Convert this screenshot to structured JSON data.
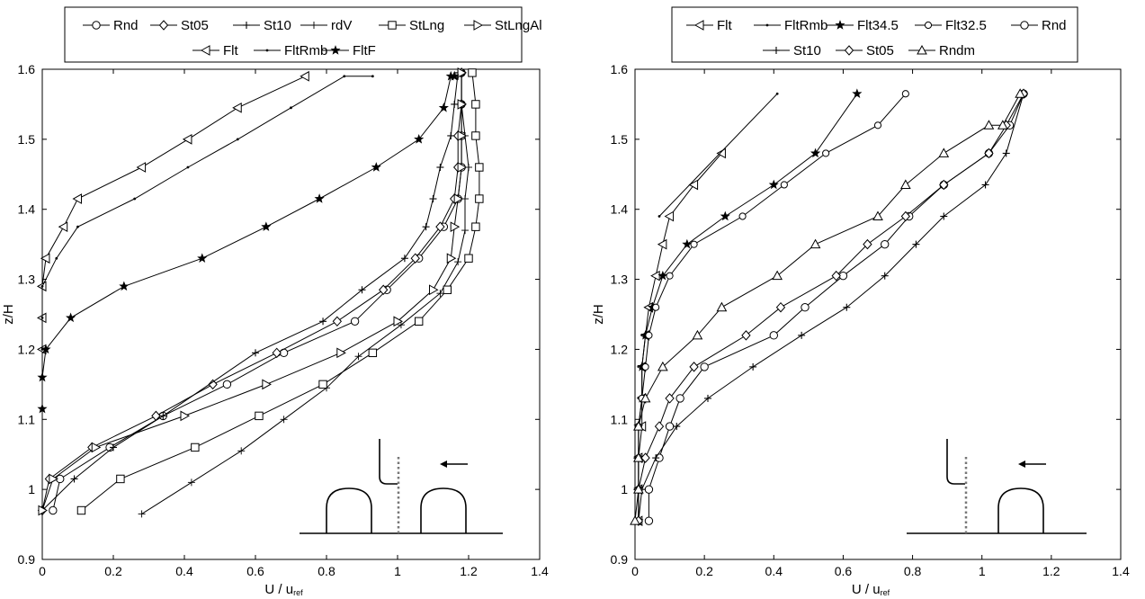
{
  "colors": {
    "line": "#000000",
    "probe": "#777777",
    "background": "#ffffff"
  },
  "chart_data": [
    {
      "type": "line",
      "title": "",
      "xlabel": "U / u",
      "xlabel_sub": "ref",
      "ylabel": "z/H",
      "xlim": [
        0,
        1.4
      ],
      "ylim": [
        0.9,
        1.6
      ],
      "xticks": [
        "0",
        "0.2",
        "0.4",
        "0.6",
        "0.8",
        "1",
        "1.2",
        "1.4"
      ],
      "yticks": [
        "0.9",
        "1",
        "1.1",
        "1.2",
        "1.3",
        "1.4",
        "1.5",
        "1.6"
      ],
      "inset": "two-hills",
      "legend_rows": [
        [
          "Rnd",
          "St05",
          "St10",
          "rdV",
          "StLng",
          "StLngAl"
        ],
        [
          "Flt",
          "FltRmb",
          "FltF"
        ]
      ],
      "series": [
        {
          "name": "Rnd",
          "marker": "circle",
          "x": [
            0.03,
            0.05,
            0.19,
            0.34,
            0.52,
            0.68,
            0.88,
            0.97,
            1.06,
            1.13,
            1.17,
            1.18,
            1.18,
            1.18,
            1.18
          ],
          "y": [
            0.97,
            1.015,
            1.06,
            1.105,
            1.15,
            1.195,
            1.24,
            1.285,
            1.33,
            1.375,
            1.415,
            1.46,
            1.505,
            1.55,
            1.595
          ]
        },
        {
          "name": "St05",
          "marker": "diamond",
          "x": [
            0.0,
            0.02,
            0.14,
            0.32,
            0.48,
            0.66,
            0.83,
            0.96,
            1.05,
            1.12,
            1.16,
            1.17,
            1.17,
            1.18,
            1.18
          ],
          "y": [
            0.97,
            1.015,
            1.06,
            1.105,
            1.15,
            1.195,
            1.24,
            1.285,
            1.33,
            1.375,
            1.415,
            1.46,
            1.505,
            1.55,
            1.595
          ]
        },
        {
          "name": "St10",
          "marker": "plus",
          "x": [
            0.0,
            0.09,
            0.2,
            0.34,
            0.6,
            0.79,
            0.9,
            1.02,
            1.08,
            1.1,
            1.12,
            1.15,
            1.16,
            1.17,
            1.17
          ],
          "y": [
            0.97,
            1.015,
            1.06,
            1.105,
            1.195,
            1.24,
            1.285,
            1.33,
            1.375,
            1.415,
            1.46,
            1.505,
            1.55,
            1.595,
            1.59
          ]
        },
        {
          "name": "rdV",
          "marker": "cross",
          "x": [
            0.28,
            0.42,
            0.56,
            0.68,
            0.8,
            0.89,
            1.01,
            1.12,
            1.17,
            1.19,
            1.19,
            1.2,
            1.19,
            1.18
          ],
          "y": [
            0.965,
            1.01,
            1.055,
            1.1,
            1.145,
            1.19,
            1.235,
            1.28,
            1.325,
            1.37,
            1.415,
            1.46,
            1.505,
            1.55
          ]
        },
        {
          "name": "StLng",
          "marker": "square",
          "x": [
            0.11,
            0.22,
            0.43,
            0.61,
            0.79,
            0.93,
            1.06,
            1.14,
            1.2,
            1.22,
            1.23,
            1.23,
            1.22,
            1.22,
            1.21
          ],
          "y": [
            0.97,
            1.015,
            1.06,
            1.105,
            1.15,
            1.195,
            1.24,
            1.285,
            1.33,
            1.375,
            1.415,
            1.46,
            1.505,
            1.55,
            1.595
          ]
        },
        {
          "name": "StLngAl",
          "marker": "triangle-right",
          "x": [
            0.0,
            0.03,
            0.15,
            0.4,
            0.63,
            0.84,
            1.0,
            1.1,
            1.15,
            1.16,
            1.17,
            1.18,
            1.18,
            1.18,
            1.18
          ],
          "y": [
            0.97,
            1.015,
            1.06,
            1.105,
            1.15,
            1.195,
            1.24,
            1.285,
            1.33,
            1.375,
            1.415,
            1.46,
            1.505,
            1.55,
            1.595
          ]
        },
        {
          "name": "Flt",
          "marker": "triangle-left",
          "x": [
            0.0,
            0.0,
            0.0,
            0.01,
            0.06,
            0.1,
            0.28,
            0.41,
            0.55,
            0.74
          ],
          "y": [
            1.2,
            1.245,
            1.29,
            1.33,
            1.375,
            1.415,
            1.46,
            1.5,
            1.545,
            1.59
          ]
        },
        {
          "name": "FltRmb",
          "marker": "dot",
          "x": [
            0.0,
            0.0,
            0.0,
            0.04,
            0.1,
            0.26,
            0.41,
            0.55,
            0.7,
            0.85,
            0.93
          ],
          "y": [
            1.2,
            1.245,
            1.29,
            1.33,
            1.375,
            1.415,
            1.46,
            1.5,
            1.545,
            1.59,
            1.59
          ]
        },
        {
          "name": "FltF",
          "marker": "star",
          "x": [
            0.0,
            0.0,
            0.01,
            0.08,
            0.23,
            0.45,
            0.63,
            0.78,
            0.94,
            1.06,
            1.13,
            1.15,
            1.16,
            1.16
          ],
          "y": [
            1.115,
            1.16,
            1.2,
            1.245,
            1.29,
            1.33,
            1.375,
            1.415,
            1.46,
            1.5,
            1.545,
            1.59,
            1.59,
            1.59
          ]
        }
      ]
    },
    {
      "type": "line",
      "title": "",
      "xlabel": "U / u",
      "xlabel_sub": "ref",
      "ylabel": "z/H",
      "xlim": [
        0,
        1.4
      ],
      "ylim": [
        0.9,
        1.6
      ],
      "xticks": [
        "0",
        "0.2",
        "0.4",
        "0.6",
        "0.8",
        "1",
        "1.2",
        "1.4"
      ],
      "yticks": [
        "0.9",
        "1",
        "1.1",
        "1.2",
        "1.3",
        "1.4",
        "1.5",
        "1.6"
      ],
      "inset": "one-hill",
      "legend_rows": [
        [
          "Flt",
          "FltRmb",
          "Flt34.5",
          "Flt32.5",
          "Rnd"
        ],
        [
          "St10",
          "St05",
          "Rndm"
        ]
      ],
      "series": [
        {
          "name": "Flt",
          "marker": "triangle-left",
          "x": [
            0.01,
            0.01,
            0.01,
            0.02,
            0.02,
            0.02,
            0.03,
            0.04,
            0.06,
            0.08,
            0.1,
            0.17,
            0.25
          ],
          "y": [
            0.955,
            1.0,
            1.045,
            1.09,
            1.13,
            1.175,
            1.22,
            1.26,
            1.305,
            1.35,
            1.39,
            1.435,
            1.48
          ]
        },
        {
          "name": "FltRmb",
          "marker": "dot",
          "x": [
            0.07,
            0.41
          ],
          "y": [
            1.39,
            1.565
          ]
        },
        {
          "name": "Flt34.5",
          "marker": "star",
          "x": [
            0.01,
            0.01,
            0.01,
            0.01,
            0.02,
            0.02,
            0.03,
            0.05,
            0.08,
            0.15,
            0.26,
            0.4,
            0.52,
            0.64
          ],
          "y": [
            0.955,
            1.0,
            1.045,
            1.09,
            1.13,
            1.175,
            1.22,
            1.26,
            1.305,
            1.35,
            1.39,
            1.435,
            1.48,
            1.565
          ]
        },
        {
          "name": "Flt32.5",
          "marker": "octagon",
          "x": [
            0.01,
            0.01,
            0.01,
            0.01,
            0.02,
            0.03,
            0.04,
            0.06,
            0.1,
            0.17,
            0.31,
            0.43,
            0.55,
            0.7,
            0.78
          ],
          "y": [
            0.955,
            1.0,
            1.045,
            1.09,
            1.13,
            1.175,
            1.22,
            1.26,
            1.305,
            1.35,
            1.39,
            1.435,
            1.48,
            1.52,
            1.565
          ]
        },
        {
          "name": "Rnd",
          "marker": "circle",
          "x": [
            0.04,
            0.04,
            0.07,
            0.1,
            0.13,
            0.2,
            0.4,
            0.49,
            0.6,
            0.72,
            0.79,
            0.89,
            1.02,
            1.08,
            1.12
          ],
          "y": [
            0.955,
            1.0,
            1.045,
            1.09,
            1.13,
            1.175,
            1.22,
            1.26,
            1.305,
            1.35,
            1.39,
            1.435,
            1.48,
            1.52,
            1.565
          ]
        },
        {
          "name": "St10",
          "marker": "plus",
          "x": [
            0.01,
            0.02,
            0.06,
            0.12,
            0.21,
            0.34,
            0.48,
            0.61,
            0.72,
            0.81,
            0.89,
            1.01,
            1.07,
            1.12
          ],
          "y": [
            0.955,
            1.0,
            1.045,
            1.09,
            1.13,
            1.175,
            1.22,
            1.26,
            1.305,
            1.35,
            1.39,
            1.435,
            1.48,
            1.565
          ]
        },
        {
          "name": "St05",
          "marker": "diamond",
          "x": [
            0.01,
            0.01,
            0.03,
            0.07,
            0.1,
            0.17,
            0.32,
            0.42,
            0.58,
            0.67,
            0.78,
            0.89,
            1.02,
            1.07,
            1.12
          ],
          "y": [
            0.955,
            1.0,
            1.045,
            1.09,
            1.13,
            1.175,
            1.22,
            1.26,
            1.305,
            1.35,
            1.39,
            1.435,
            1.48,
            1.52,
            1.565
          ]
        },
        {
          "name": "Rndm",
          "marker": "triangle-up",
          "x": [
            0.0,
            0.01,
            0.01,
            0.01,
            0.03,
            0.08,
            0.18,
            0.25,
            0.41,
            0.52,
            0.7,
            0.78,
            0.89,
            1.02,
            1.06,
            1.11
          ],
          "y": [
            0.955,
            1.0,
            1.045,
            1.09,
            1.13,
            1.175,
            1.22,
            1.26,
            1.305,
            1.35,
            1.39,
            1.435,
            1.48,
            1.52,
            1.52,
            1.565
          ]
        }
      ]
    }
  ]
}
